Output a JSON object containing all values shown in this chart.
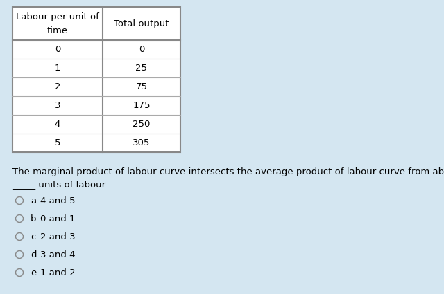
{
  "background_color": "#d4e6f1",
  "table_header_col1_line1": "Labour per unit of",
  "table_header_col1_line2": "time",
  "table_header_col2": "Total output",
  "table_data": [
    [
      0,
      0
    ],
    [
      1,
      25
    ],
    [
      2,
      75
    ],
    [
      3,
      175
    ],
    [
      4,
      250
    ],
    [
      5,
      305
    ]
  ],
  "question_line1": "The marginal product of labour curve intersects the average product of labour curve from above between",
  "question_line2": "_____ units of labour.",
  "options": [
    [
      "a.",
      "4 and 5."
    ],
    [
      "b.",
      "0 and 1."
    ],
    [
      "c.",
      "2 and 3."
    ],
    [
      "d.",
      "3 and 4."
    ],
    [
      "e.",
      "1 and 2."
    ]
  ],
  "table_border_color": "#888888",
  "table_line_color": "#aaaaaa",
  "font_size_table": 9.5,
  "font_size_body": 9.5,
  "circle_color": "#888888"
}
